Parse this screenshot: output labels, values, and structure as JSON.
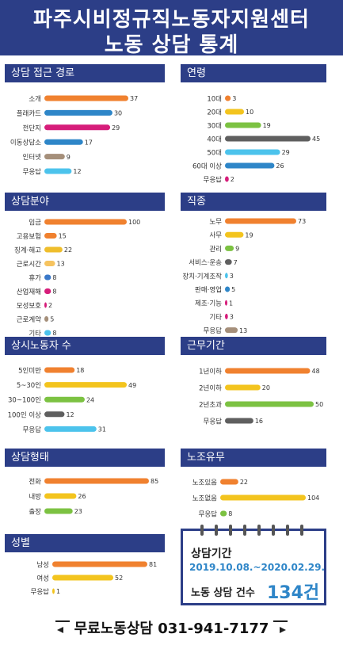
{
  "header": {
    "title_line1": "파주시비정규직노동자지원센터",
    "title_line2": "노동 상담 통계"
  },
  "summary": {
    "period_label": "상담기간",
    "period_dates": "2019.10.08.~2020.02.29.",
    "count_label": "노동 상담 건수",
    "count_value": "134건"
  },
  "footer": {
    "text": "무료노동상담 031-941-7177"
  },
  "colors": {
    "header": "#2c3e87",
    "orange": "#f0812f",
    "blue": "#2e86c8",
    "magenta": "#d61d7a",
    "light_blue": "#4cc3ec",
    "taupe": "#a58f7a",
    "yellow": "#f3c41e",
    "green": "#7cc242",
    "dark_gray": "#5f5f5f",
    "mid_blue": "#3b79c9",
    "light_orange": "#f6c35f",
    "gold": "#efbe2c"
  },
  "chart_data": [
    {
      "type": "bar",
      "title": "상담 접근 경로",
      "categories": [
        "소개",
        "플래카드",
        "전단지",
        "이동상담소",
        "인터넷",
        "무응답"
      ],
      "values": [
        37,
        30,
        29,
        17,
        9,
        12
      ],
      "colors": [
        "#f0812f",
        "#2e86c8",
        "#d61d7a",
        "#2e86c8",
        "#a58f7a",
        "#4cc3ec"
      ]
    },
    {
      "type": "bar",
      "title": "연령",
      "categories": [
        "10대",
        "20대",
        "30대",
        "40대",
        "50대",
        "60대 이상",
        "무응답"
      ],
      "values": [
        3,
        10,
        19,
        45,
        29,
        26,
        2
      ],
      "colors": [
        "#f0812f",
        "#f3c41e",
        "#7cc242",
        "#5f5f5f",
        "#4cc3ec",
        "#2e86c8",
        "#d61d7a"
      ]
    },
    {
      "type": "bar",
      "title": "상담분야",
      "categories": [
        "임금",
        "고용보험",
        "징계·해고",
        "근로시간",
        "휴가",
        "산업재해",
        "모성보호",
        "근로계약",
        "기타"
      ],
      "values": [
        100,
        15,
        22,
        13,
        8,
        8,
        2,
        5,
        8
      ],
      "colors": [
        "#f0812f",
        "#f0812f",
        "#efbe2c",
        "#f6c35f",
        "#3b79c9",
        "#d61d7a",
        "#d61d7a",
        "#a58f7a",
        "#4cc3ec"
      ]
    },
    {
      "type": "bar",
      "title": "직종",
      "categories": [
        "노무",
        "사무",
        "관리",
        "서비스·운송",
        "장치·기계조작",
        "판매·영업",
        "제조·기능",
        "기타",
        "무응답"
      ],
      "values": [
        73,
        19,
        9,
        7,
        3,
        5,
        1,
        3,
        13
      ],
      "colors": [
        "#f0812f",
        "#f3c41e",
        "#7cc242",
        "#5f5f5f",
        "#4cc3ec",
        "#2e86c8",
        "#d61d7a",
        "#d61d7a",
        "#a58f7a"
      ]
    },
    {
      "type": "bar",
      "title": "상시노동자 수",
      "categories": [
        "5인미만",
        "5~30인",
        "30~100인",
        "100인 이상",
        "무응답"
      ],
      "values": [
        18,
        49,
        24,
        12,
        31
      ],
      "colors": [
        "#f0812f",
        "#f3c41e",
        "#7cc242",
        "#5f5f5f",
        "#4cc3ec"
      ]
    },
    {
      "type": "bar",
      "title": "근무기간",
      "categories": [
        "1년이하",
        "2년이하",
        "2년초과",
        "무응답"
      ],
      "values": [
        48,
        20,
        50,
        16
      ],
      "colors": [
        "#f0812f",
        "#f3c41e",
        "#7cc242",
        "#5f5f5f"
      ]
    },
    {
      "type": "bar",
      "title": "상담형태",
      "categories": [
        "전화",
        "내방",
        "출장"
      ],
      "values": [
        85,
        26,
        23
      ],
      "colors": [
        "#f0812f",
        "#f3c41e",
        "#7cc242"
      ]
    },
    {
      "type": "bar",
      "title": "노조유무",
      "categories": [
        "노조있음",
        "노조없음",
        "무응답"
      ],
      "values": [
        22,
        104,
        8
      ],
      "colors": [
        "#f0812f",
        "#f3c41e",
        "#7cc242"
      ]
    },
    {
      "type": "bar",
      "title": "성별",
      "categories": [
        "남성",
        "여성",
        "무응답"
      ],
      "values": [
        81,
        52,
        1
      ],
      "colors": [
        "#f0812f",
        "#f3c41e",
        "#f3c41e"
      ]
    }
  ]
}
